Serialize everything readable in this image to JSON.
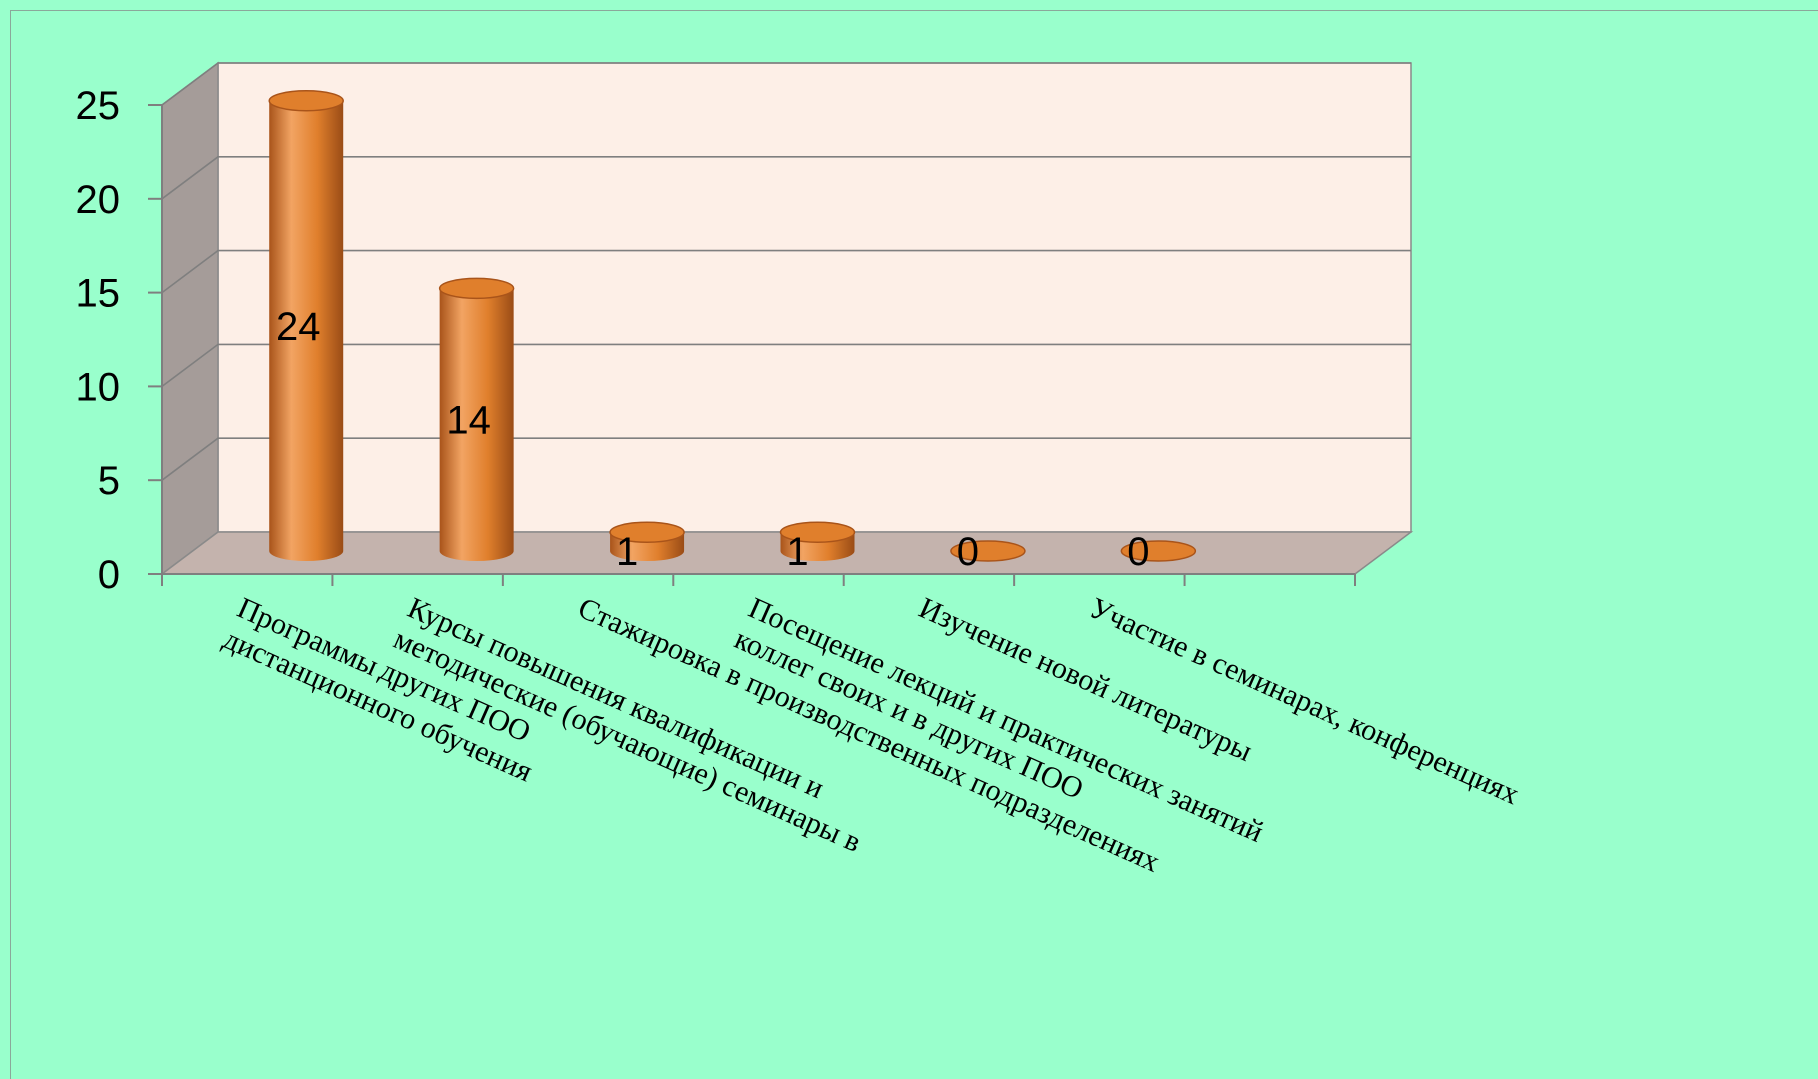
{
  "chart_data": {
    "type": "bar",
    "categories": [
      "Программы дистанционного обучения",
      "Курсы повышения квалификации и методические (обучающие) семинары в других ПОО",
      "Стажировка в производственных подразделениях",
      "Посещение лекций и практических занятий коллег своих и в других ПОО",
      "Изучение новой литературы",
      "Участие в семинарах, конференциях"
    ],
    "values": [
      24,
      14,
      1,
      1,
      0,
      0
    ],
    "data_labels": [
      "24",
      "14",
      "1",
      "1",
      "0",
      "0"
    ],
    "ylim": [
      0,
      25
    ],
    "yticks": [
      "0",
      "5",
      "10",
      "15",
      "20",
      "25"
    ],
    "grid": true,
    "style": "3d-cylinder",
    "colors": {
      "bar": "#e07f2c",
      "bar_dark": "#a9541a",
      "bar_light": "#f2a463",
      "back_wall": "#fdefe7",
      "side_wall": "#a59c99",
      "floor": "#c4b3ad",
      "background": "#99ffcc"
    }
  }
}
